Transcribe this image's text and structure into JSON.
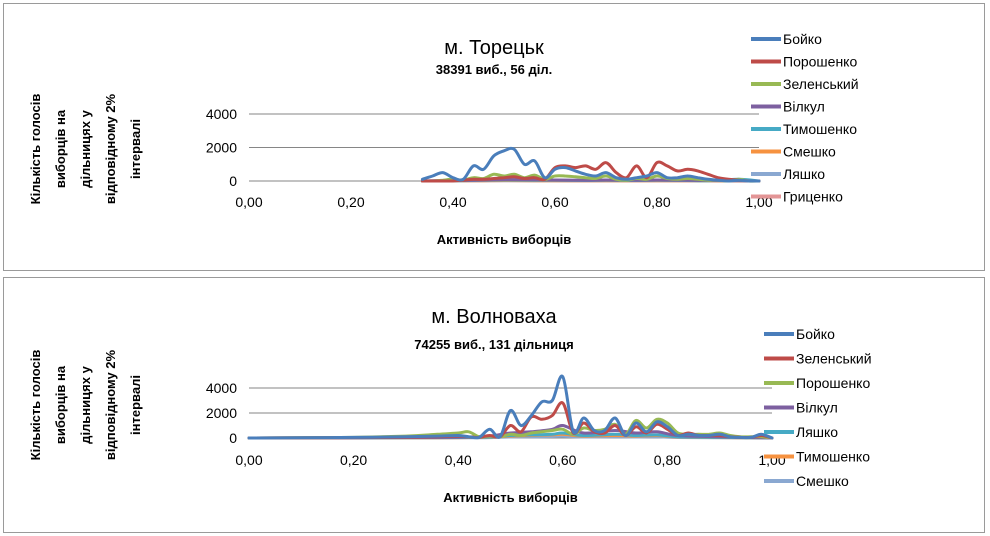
{
  "charts": [
    {
      "title": "м. Торецьк",
      "subtitle": "38391 виб., 56 діл.",
      "chart_data": {
        "type": "line",
        "xlabel": "Активність виборців",
        "ylabel_lines": [
          "Кількість голосів",
          "виборців на",
          "дільницях у",
          "відповідному 2%",
          "інтервалі"
        ],
        "xlim": [
          0,
          1
        ],
        "ylim": [
          0,
          4000
        ],
        "x_ticks": [
          "0,00",
          "0,20",
          "0,40",
          "0,60",
          "0,80",
          "1,00"
        ],
        "y_ticks": [
          "0",
          "2000",
          "4000"
        ],
        "grid": true,
        "legend_position": "right",
        "series": [
          {
            "name": "Бойко",
            "color": "#4a7ebb",
            "x": [
              0.34,
              0.36,
              0.38,
              0.4,
              0.42,
              0.44,
              0.46,
              0.48,
              0.5,
              0.52,
              0.54,
              0.56,
              0.58,
              0.6,
              0.62,
              0.64,
              0.66,
              0.68,
              0.7,
              0.72,
              0.74,
              0.76,
              0.78,
              0.8,
              0.82,
              0.84,
              0.86,
              0.88,
              0.9,
              0.92,
              0.94,
              0.96,
              0.98,
              1.0
            ],
            "y": [
              100,
              300,
              500,
              200,
              100,
              900,
              700,
              1500,
              1800,
              1900,
              1000,
              1200,
              200,
              700,
              800,
              600,
              400,
              300,
              500,
              200,
              100,
              200,
              300,
              500,
              200,
              200,
              300,
              200,
              100,
              50,
              0,
              50,
              0,
              0
            ]
          },
          {
            "name": "Порошенко",
            "color": "#be4b48",
            "x": [
              0.34,
              0.36,
              0.38,
              0.4,
              0.42,
              0.44,
              0.46,
              0.48,
              0.5,
              0.52,
              0.54,
              0.56,
              0.58,
              0.6,
              0.62,
              0.64,
              0.66,
              0.68,
              0.7,
              0.72,
              0.74,
              0.76,
              0.78,
              0.8,
              0.82,
              0.84,
              0.86,
              0.88,
              0.9,
              0.92,
              0.94,
              0.96,
              0.98,
              1.0
            ],
            "y": [
              0,
              0,
              0,
              0,
              50,
              100,
              100,
              150,
              200,
              250,
              150,
              200,
              100,
              800,
              900,
              800,
              900,
              700,
              1100,
              500,
              200,
              900,
              200,
              1100,
              900,
              600,
              700,
              600,
              400,
              200,
              100,
              50,
              0,
              0
            ]
          },
          {
            "name": "Зеленський",
            "color": "#98b954",
            "x": [
              0.34,
              0.36,
              0.38,
              0.4,
              0.42,
              0.44,
              0.46,
              0.48,
              0.5,
              0.52,
              0.54,
              0.56,
              0.58,
              0.6,
              0.62,
              0.64,
              0.66,
              0.68,
              0.7,
              0.72,
              0.74,
              0.76,
              0.78,
              0.8,
              0.82,
              0.84,
              0.86,
              0.88,
              0.9,
              0.92,
              0.94,
              0.96,
              0.98,
              1.0
            ],
            "y": [
              0,
              0,
              50,
              100,
              50,
              200,
              150,
              400,
              300,
              400,
              200,
              350,
              100,
              300,
              300,
              250,
              200,
              150,
              300,
              100,
              50,
              150,
              100,
              300,
              150,
              100,
              150,
              100,
              50,
              50,
              0,
              100,
              0,
              0
            ]
          },
          {
            "name": "Вілкул",
            "color": "#7d60a0",
            "x": [
              0.34,
              0.4,
              0.46,
              0.5,
              0.56,
              0.6,
              0.66,
              0.7,
              0.76,
              0.8,
              0.86,
              0.9,
              0.96,
              1.0
            ],
            "y": [
              0,
              30,
              60,
              90,
              70,
              60,
              50,
              60,
              40,
              60,
              40,
              30,
              10,
              0
            ]
          },
          {
            "name": "Тимошенко",
            "color": "#46aac5",
            "x": [
              0.34,
              0.4,
              0.46,
              0.5,
              0.56,
              0.6,
              0.66,
              0.7,
              0.76,
              0.8,
              0.86,
              0.9,
              0.96,
              1.0
            ],
            "y": [
              0,
              20,
              40,
              60,
              50,
              40,
              30,
              40,
              30,
              40,
              30,
              20,
              100,
              0
            ]
          },
          {
            "name": "Смешко",
            "color": "#f69240",
            "x": [
              0.34,
              0.4,
              0.46,
              0.5,
              0.56,
              0.6,
              0.66,
              0.7,
              0.76,
              0.8,
              0.86,
              0.9,
              0.96,
              1.0
            ],
            "y": [
              0,
              10,
              20,
              30,
              20,
              20,
              15,
              20,
              15,
              20,
              15,
              10,
              5,
              0
            ]
          },
          {
            "name": "Ляшко",
            "color": "#8aa8d1",
            "x": [
              0.34,
              0.4,
              0.46,
              0.5,
              0.56,
              0.6,
              0.66,
              0.7,
              0.76,
              0.8,
              0.86,
              0.9,
              0.96,
              1.0
            ],
            "y": [
              0,
              10,
              20,
              25,
              20,
              15,
              10,
              15,
              10,
              15,
              10,
              5,
              5,
              0
            ]
          },
          {
            "name": "Гриценко",
            "color": "#e39596",
            "x": [
              0.34,
              0.4,
              0.46,
              0.5,
              0.56,
              0.6,
              0.66,
              0.7,
              0.76,
              0.8,
              0.86,
              0.9,
              0.96,
              1.0
            ],
            "y": [
              0,
              5,
              10,
              15,
              10,
              10,
              5,
              10,
              5,
              10,
              5,
              5,
              0,
              0
            ]
          }
        ]
      }
    },
    {
      "title": "м. Волноваха",
      "subtitle": "74255 виб., 131 дільниця",
      "chart_data": {
        "type": "line",
        "xlabel": "Активність виборців",
        "ylabel_lines": [
          "Кількість голосів",
          "виборців на",
          "дільницях у",
          "відповідному 2%",
          "інтервалі"
        ],
        "xlim": [
          0,
          1
        ],
        "ylim": [
          0,
          4000
        ],
        "x_ticks": [
          "0,00",
          "0,20",
          "0,40",
          "0,60",
          "0,80",
          "1,00"
        ],
        "y_ticks": [
          "0",
          "2000",
          "4000"
        ],
        "grid": true,
        "legend_position": "right",
        "series": [
          {
            "name": "Бойко",
            "color": "#4a7ebb",
            "x": [
              0.0,
              0.1,
              0.2,
              0.3,
              0.36,
              0.4,
              0.42,
              0.44,
              0.46,
              0.48,
              0.5,
              0.52,
              0.54,
              0.56,
              0.58,
              0.6,
              0.62,
              0.64,
              0.66,
              0.68,
              0.7,
              0.72,
              0.74,
              0.76,
              0.78,
              0.8,
              0.82,
              0.84,
              0.86,
              0.88,
              0.9,
              0.92,
              0.94,
              0.96,
              0.98,
              1.0
            ],
            "y": [
              0,
              20,
              50,
              100,
              150,
              200,
              100,
              50,
              700,
              100,
              2200,
              1000,
              1800,
              2900,
              3000,
              4900,
              500,
              1600,
              600,
              600,
              1600,
              200,
              1200,
              500,
              1300,
              900,
              200,
              300,
              200,
              200,
              300,
              100,
              50,
              50,
              300,
              0
            ]
          },
          {
            "name": "Зеленський",
            "color": "#be4b48",
            "x": [
              0.0,
              0.1,
              0.2,
              0.3,
              0.36,
              0.4,
              0.42,
              0.44,
              0.46,
              0.48,
              0.5,
              0.52,
              0.54,
              0.56,
              0.58,
              0.6,
              0.62,
              0.64,
              0.66,
              0.68,
              0.7,
              0.72,
              0.74,
              0.76,
              0.78,
              0.8,
              0.82,
              0.84,
              0.86,
              0.88,
              0.9,
              0.92,
              0.94,
              0.96,
              0.98,
              1.0
            ],
            "y": [
              0,
              10,
              30,
              60,
              100,
              150,
              80,
              50,
              200,
              100,
              1000,
              500,
              1700,
              1500,
              1800,
              2800,
              400,
              1200,
              500,
              400,
              1000,
              200,
              900,
              400,
              1100,
              700,
              200,
              400,
              200,
              200,
              200,
              100,
              50,
              50,
              200,
              0
            ]
          },
          {
            "name": "Порошенко",
            "color": "#98b954",
            "x": [
              0.0,
              0.1,
              0.2,
              0.3,
              0.36,
              0.4,
              0.42,
              0.44,
              0.46,
              0.48,
              0.5,
              0.52,
              0.54,
              0.56,
              0.58,
              0.6,
              0.62,
              0.64,
              0.66,
              0.68,
              0.7,
              0.72,
              0.74,
              0.76,
              0.78,
              0.8,
              0.82,
              0.84,
              0.86,
              0.88,
              0.9,
              0.92,
              0.94,
              0.96,
              0.98,
              1.0
            ],
            "y": [
              0,
              20,
              50,
              150,
              300,
              400,
              500,
              100,
              150,
              100,
              300,
              200,
              400,
              500,
              600,
              700,
              300,
              800,
              600,
              700,
              1100,
              300,
              1400,
              800,
              1500,
              1200,
              400,
              300,
              300,
              300,
              400,
              200,
              100,
              100,
              100,
              0
            ]
          },
          {
            "name": "Вілкул",
            "color": "#7d60a0",
            "x": [
              0.0,
              0.2,
              0.36,
              0.42,
              0.46,
              0.5,
              0.54,
              0.58,
              0.6,
              0.64,
              0.7,
              0.74,
              0.78,
              0.82,
              0.9,
              1.0
            ],
            "y": [
              0,
              20,
              50,
              80,
              150,
              400,
              500,
              700,
              1000,
              400,
              600,
              400,
              500,
              200,
              100,
              0
            ]
          },
          {
            "name": "Ляшко",
            "color": "#46aac5",
            "x": [
              0.0,
              0.2,
              0.36,
              0.42,
              0.46,
              0.5,
              0.54,
              0.58,
              0.6,
              0.64,
              0.7,
              0.74,
              0.78,
              0.82,
              0.9,
              1.0
            ],
            "y": [
              0,
              10,
              30,
              50,
              80,
              200,
              250,
              300,
              400,
              200,
              300,
              200,
              250,
              100,
              50,
              0
            ]
          },
          {
            "name": "Тимошенко",
            "color": "#f69240",
            "x": [
              0.0,
              0.2,
              0.36,
              0.42,
              0.46,
              0.5,
              0.54,
              0.58,
              0.6,
              0.64,
              0.7,
              0.74,
              0.78,
              0.82,
              0.9,
              1.0
            ],
            "y": [
              0,
              10,
              20,
              40,
              60,
              150,
              200,
              250,
              300,
              150,
              200,
              150,
              200,
              80,
              40,
              0
            ]
          },
          {
            "name": "Смешко",
            "color": "#8aa8d1",
            "x": [
              0.0,
              0.2,
              0.36,
              0.42,
              0.46,
              0.5,
              0.54,
              0.58,
              0.6,
              0.64,
              0.7,
              0.74,
              0.78,
              0.82,
              0.9,
              1.0
            ],
            "y": [
              0,
              5,
              10,
              20,
              30,
              80,
              100,
              120,
              150,
              80,
              100,
              80,
              100,
              40,
              20,
              0
            ]
          }
        ]
      }
    }
  ]
}
